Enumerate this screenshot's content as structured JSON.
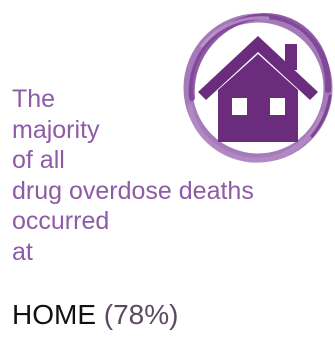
{
  "headline": {
    "lines": [
      "The",
      "majority",
      "of all",
      "drug overdose deaths",
      "occurred",
      "at"
    ]
  },
  "emphasis": {
    "place": "HOME",
    "percent": "(78%)"
  },
  "icon": {
    "name": "house-icon",
    "color": "#6b2c7e",
    "ring_color": "#9b6bb0"
  },
  "colors": {
    "headline_text": "#8e5ba6",
    "emphasis_text": "#111111",
    "percent_text": "#5b4a63"
  }
}
